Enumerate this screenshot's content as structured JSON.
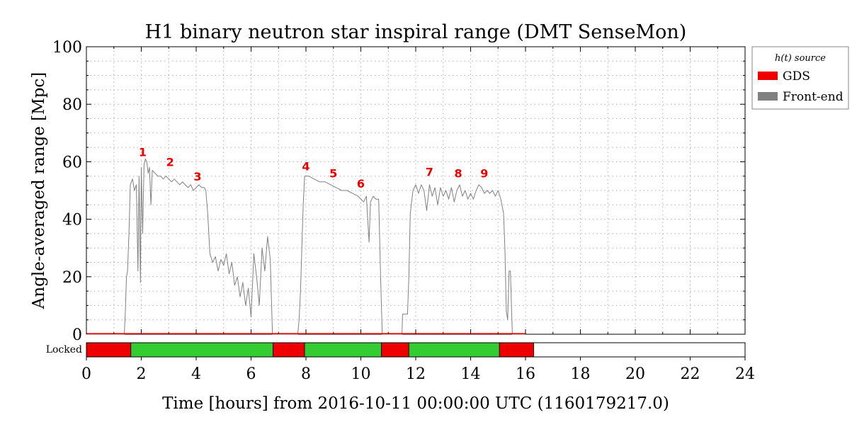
{
  "chart_data": {
    "type": "line",
    "title": "H1 binary neutron star inspiral range (DMT SenseMon)",
    "xlabel": "Time [hours] from 2016-10-11 00:00:00 UTC (1160179217.0)",
    "ylabel": "Angle-averaged range [Mpc]",
    "xlim": [
      0,
      24
    ],
    "ylim": [
      0,
      100
    ],
    "x_ticks": [
      "0",
      "2",
      "4",
      "6",
      "8",
      "10",
      "12",
      "14",
      "16",
      "18",
      "20",
      "22",
      "24"
    ],
    "y_ticks": [
      "0",
      "20",
      "40",
      "60",
      "80",
      "100"
    ],
    "grid": true,
    "legend": {
      "title": "h(t) source",
      "placement": "right-outside-top",
      "entries": [
        {
          "label": "GDS",
          "color": "#ee0000"
        },
        {
          "label": "Front-end",
          "color": "#808080"
        }
      ]
    },
    "series": [
      {
        "name": "Front-end",
        "color": "#808080",
        "points": [
          [
            0,
            0
          ],
          [
            1.38,
            0
          ],
          [
            1.42,
            8
          ],
          [
            1.46,
            20
          ],
          [
            1.5,
            22
          ],
          [
            1.55,
            35
          ],
          [
            1.6,
            52
          ],
          [
            1.68,
            54
          ],
          [
            1.75,
            50
          ],
          [
            1.82,
            52
          ],
          [
            1.88,
            22
          ],
          [
            1.92,
            55
          ],
          [
            1.97,
            18
          ],
          [
            2.0,
            58
          ],
          [
            2.05,
            35
          ],
          [
            2.1,
            59
          ],
          [
            2.15,
            61
          ],
          [
            2.2,
            60
          ],
          [
            2.25,
            56
          ],
          [
            2.3,
            58
          ],
          [
            2.35,
            45
          ],
          [
            2.4,
            57
          ],
          [
            2.5,
            56
          ],
          [
            2.6,
            55
          ],
          [
            2.7,
            55
          ],
          [
            2.8,
            54
          ],
          [
            2.9,
            55
          ],
          [
            3.0,
            54
          ],
          [
            3.1,
            53
          ],
          [
            3.2,
            54
          ],
          [
            3.3,
            53
          ],
          [
            3.4,
            52
          ],
          [
            3.5,
            53
          ],
          [
            3.6,
            52
          ],
          [
            3.7,
            51
          ],
          [
            3.8,
            52
          ],
          [
            3.9,
            50
          ],
          [
            4.0,
            51
          ],
          [
            4.1,
            52
          ],
          [
            4.2,
            51
          ],
          [
            4.3,
            51
          ],
          [
            4.35,
            50
          ],
          [
            4.42,
            42
          ],
          [
            4.5,
            28
          ],
          [
            4.6,
            25
          ],
          [
            4.7,
            27
          ],
          [
            4.8,
            22
          ],
          [
            4.9,
            26
          ],
          [
            5.0,
            24
          ],
          [
            5.1,
            28
          ],
          [
            5.2,
            21
          ],
          [
            5.3,
            25
          ],
          [
            5.4,
            17
          ],
          [
            5.5,
            20
          ],
          [
            5.6,
            13
          ],
          [
            5.7,
            18
          ],
          [
            5.8,
            10
          ],
          [
            5.9,
            16
          ],
          [
            6.0,
            6
          ],
          [
            6.1,
            28
          ],
          [
            6.2,
            20
          ],
          [
            6.3,
            10
          ],
          [
            6.4,
            30
          ],
          [
            6.5,
            22
          ],
          [
            6.6,
            34
          ],
          [
            6.7,
            26
          ],
          [
            6.78,
            0
          ],
          [
            7.7,
            0
          ],
          [
            7.75,
            5
          ],
          [
            7.8,
            15
          ],
          [
            7.85,
            30
          ],
          [
            7.9,
            45
          ],
          [
            7.95,
            55
          ],
          [
            8.1,
            55
          ],
          [
            8.3,
            54
          ],
          [
            8.5,
            53
          ],
          [
            8.7,
            53
          ],
          [
            8.9,
            52
          ],
          [
            9.1,
            51
          ],
          [
            9.3,
            50
          ],
          [
            9.5,
            50
          ],
          [
            9.7,
            49
          ],
          [
            9.9,
            48
          ],
          [
            10.1,
            46
          ],
          [
            10.2,
            48
          ],
          [
            10.3,
            32
          ],
          [
            10.35,
            46
          ],
          [
            10.45,
            48
          ],
          [
            10.55,
            47
          ],
          [
            10.65,
            47
          ],
          [
            10.72,
            20
          ],
          [
            10.78,
            0
          ],
          [
            11.5,
            0
          ],
          [
            11.52,
            7
          ],
          [
            11.6,
            7
          ],
          [
            11.7,
            7
          ],
          [
            11.75,
            20
          ],
          [
            11.8,
            42
          ],
          [
            11.9,
            50
          ],
          [
            12.0,
            52
          ],
          [
            12.1,
            49
          ],
          [
            12.2,
            52
          ],
          [
            12.3,
            50
          ],
          [
            12.4,
            43
          ],
          [
            12.5,
            52
          ],
          [
            12.6,
            48
          ],
          [
            12.7,
            51
          ],
          [
            12.8,
            45
          ],
          [
            12.9,
            51
          ],
          [
            13.0,
            48
          ],
          [
            13.1,
            50
          ],
          [
            13.2,
            47
          ],
          [
            13.3,
            51
          ],
          [
            13.4,
            46
          ],
          [
            13.5,
            50
          ],
          [
            13.6,
            52
          ],
          [
            13.7,
            48
          ],
          [
            13.8,
            50
          ],
          [
            13.9,
            47
          ],
          [
            14.0,
            49
          ],
          [
            14.1,
            47
          ],
          [
            14.2,
            50
          ],
          [
            14.3,
            52
          ],
          [
            14.4,
            51
          ],
          [
            14.5,
            49
          ],
          [
            14.6,
            50
          ],
          [
            14.7,
            49
          ],
          [
            14.8,
            50
          ],
          [
            14.9,
            48
          ],
          [
            15.0,
            50
          ],
          [
            15.1,
            47
          ],
          [
            15.2,
            42
          ],
          [
            15.25,
            30
          ],
          [
            15.3,
            8
          ],
          [
            15.35,
            5
          ],
          [
            15.4,
            22
          ],
          [
            15.45,
            22
          ],
          [
            15.52,
            0
          ],
          [
            16.0,
            0
          ]
        ]
      },
      {
        "name": "GDS",
        "color": "#ee0000",
        "points": [
          [
            0,
            0.2
          ],
          [
            16.0,
            0.2
          ]
        ]
      }
    ],
    "annotations": [
      {
        "text": "1",
        "x": 2.05,
        "y": 62,
        "color": "#ee0000"
      },
      {
        "text": "2",
        "x": 3.05,
        "y": 58.5,
        "color": "#ee0000"
      },
      {
        "text": "3",
        "x": 4.05,
        "y": 53.5,
        "color": "#ee0000"
      },
      {
        "text": "4",
        "x": 8.0,
        "y": 57,
        "color": "#ee0000"
      },
      {
        "text": "5",
        "x": 9.0,
        "y": 54.5,
        "color": "#ee0000"
      },
      {
        "text": "6",
        "x": 10.0,
        "y": 51,
        "color": "#ee0000"
      },
      {
        "text": "7",
        "x": 12.5,
        "y": 55,
        "color": "#ee0000"
      },
      {
        "text": "8",
        "x": 13.55,
        "y": 54.5,
        "color": "#ee0000"
      },
      {
        "text": "9",
        "x": 14.5,
        "y": 54.5,
        "color": "#ee0000"
      }
    ],
    "state_bar": {
      "label": "Locked",
      "segments": [
        {
          "start": 0,
          "end": 1.62,
          "color": "#ee0000"
        },
        {
          "start": 1.62,
          "end": 6.8,
          "color": "#33cc33"
        },
        {
          "start": 6.8,
          "end": 7.95,
          "color": "#ee0000"
        },
        {
          "start": 7.95,
          "end": 10.75,
          "color": "#33cc33"
        },
        {
          "start": 10.75,
          "end": 11.75,
          "color": "#ee0000"
        },
        {
          "start": 11.75,
          "end": 15.05,
          "color": "#33cc33"
        },
        {
          "start": 15.05,
          "end": 16.3,
          "color": "#ee0000"
        }
      ]
    }
  }
}
